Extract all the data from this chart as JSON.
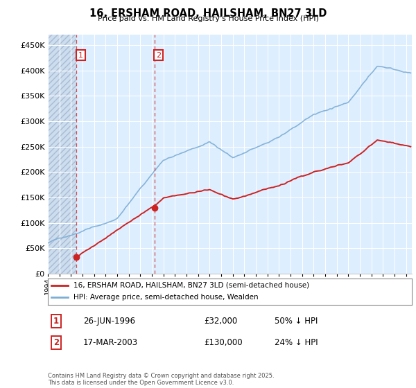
{
  "title": "16, ERSHAM ROAD, HAILSHAM, BN27 3LD",
  "subtitle": "Price paid vs. HM Land Registry's House Price Index (HPI)",
  "xlim_start": 1994.0,
  "xlim_end": 2025.5,
  "ylim": [
    0,
    470000
  ],
  "yticks": [
    0,
    50000,
    100000,
    150000,
    200000,
    250000,
    300000,
    350000,
    400000,
    450000
  ],
  "ytick_labels": [
    "£0",
    "£50K",
    "£100K",
    "£150K",
    "£200K",
    "£250K",
    "£300K",
    "£350K",
    "£400K",
    "£450K"
  ],
  "hpi_color": "#7dadd4",
  "price_color": "#cc2222",
  "sale1_date": 1996.484,
  "sale1_price": 32000,
  "sale2_date": 2003.21,
  "sale2_price": 130000,
  "legend_price_label": "16, ERSHAM ROAD, HAILSHAM, BN27 3LD (semi-detached house)",
  "legend_hpi_label": "HPI: Average price, semi-detached house, Wealden",
  "footer": "Contains HM Land Registry data © Crown copyright and database right 2025.\nThis data is licensed under the Open Government Licence v3.0.",
  "table_rows": [
    [
      "1",
      "26-JUN-1996",
      "£32,000",
      "50% ↓ HPI"
    ],
    [
      "2",
      "17-MAR-2003",
      "£130,000",
      "24% ↓ HPI"
    ]
  ],
  "bg_color": "#ddeeff",
  "hatch_bg": "#ccddf0"
}
